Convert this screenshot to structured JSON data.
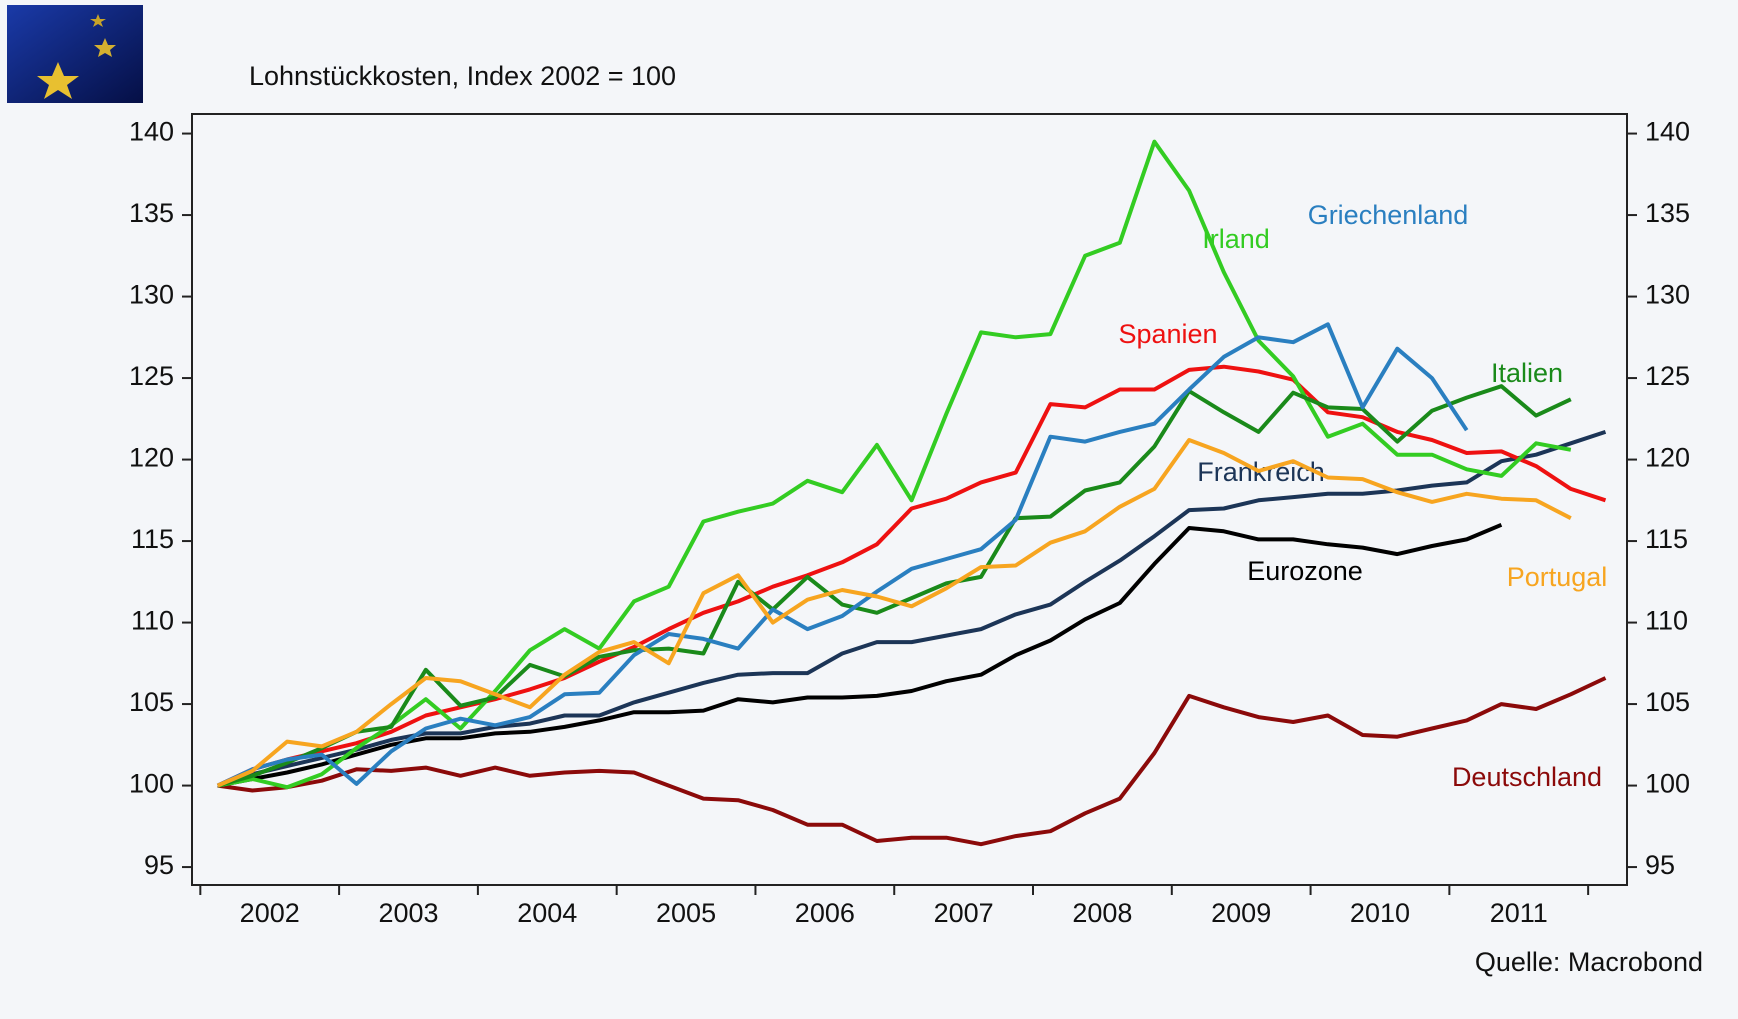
{
  "chart_data": {
    "type": "line",
    "title": "Lohnstückkosten, Index 2002 = 100",
    "source": "Quelle: Macrobond",
    "x": [
      2002.125,
      2002.375,
      2002.625,
      2002.875,
      2003.125,
      2003.375,
      2003.625,
      2003.875,
      2004.125,
      2004.375,
      2004.625,
      2004.875,
      2005.125,
      2005.375,
      2005.625,
      2005.875,
      2006.125,
      2006.375,
      2006.625,
      2006.875,
      2007.125,
      2007.375,
      2007.625,
      2007.875,
      2008.125,
      2008.375,
      2008.625,
      2008.875,
      2009.125,
      2009.375,
      2009.625,
      2009.875,
      2010.125,
      2010.375,
      2010.625,
      2010.875,
      2011.125,
      2011.375,
      2011.625,
      2011.875,
      2012.125
    ],
    "xlim": [
      2001.94,
      2012.28
    ],
    "xticks": [
      2002,
      2003,
      2004,
      2005,
      2006,
      2007,
      2008,
      2009,
      2010,
      2011,
      2012
    ],
    "xlabels": [
      {
        "value": 2002.5,
        "label": "2002"
      },
      {
        "value": 2003.5,
        "label": "2003"
      },
      {
        "value": 2004.5,
        "label": "2004"
      },
      {
        "value": 2005.5,
        "label": "2005"
      },
      {
        "value": 2006.5,
        "label": "2006"
      },
      {
        "value": 2007.5,
        "label": "2007"
      },
      {
        "value": 2008.5,
        "label": "2008"
      },
      {
        "value": 2009.5,
        "label": "2009"
      },
      {
        "value": 2010.5,
        "label": "2010"
      },
      {
        "value": 2011.5,
        "label": "2011"
      }
    ],
    "ylim": [
      93.9,
      141.2
    ],
    "yticks": [
      95,
      100,
      105,
      110,
      115,
      120,
      125,
      130,
      135,
      140
    ],
    "grid": false,
    "series": [
      {
        "name": "Deutschland",
        "color": "#8b0a0a",
        "values": [
          100,
          99.7,
          99.9,
          100.3,
          101.0,
          100.9,
          101.1,
          100.6,
          101.1,
          100.6,
          100.8,
          100.9,
          100.8,
          100.0,
          99.2,
          99.1,
          98.5,
          97.6,
          97.6,
          96.6,
          96.8,
          96.8,
          96.4,
          96.9,
          97.2,
          98.3,
          99.2,
          102.0,
          105.5,
          104.8,
          104.2,
          103.9,
          104.3,
          103.1,
          103.0,
          103.5,
          104.0,
          105.0,
          104.7,
          105.6,
          106.6
        ]
      },
      {
        "name": "Eurozone",
        "color": "#000000",
        "values": [
          100,
          100.4,
          100.8,
          101.3,
          101.9,
          102.5,
          102.9,
          102.9,
          103.2,
          103.3,
          103.6,
          104.0,
          104.5,
          104.5,
          104.6,
          105.3,
          105.1,
          105.4,
          105.4,
          105.5,
          105.8,
          106.4,
          106.8,
          108.0,
          108.9,
          110.2,
          111.2,
          113.6,
          115.8,
          115.6,
          115.1,
          115.1,
          114.8,
          114.6,
          114.2,
          114.7,
          115.1,
          116.0,
          null,
          null,
          null
        ]
      },
      {
        "name": "Frankreich",
        "color": "#1c3557",
        "values": [
          100,
          100.7,
          101.2,
          101.7,
          102.2,
          102.8,
          103.2,
          103.2,
          103.6,
          103.8,
          104.3,
          104.3,
          105.1,
          105.7,
          106.3,
          106.8,
          106.9,
          106.9,
          108.1,
          108.8,
          108.8,
          109.2,
          109.6,
          110.5,
          111.1,
          112.5,
          113.8,
          115.3,
          116.9,
          117.0,
          117.5,
          117.7,
          117.9,
          117.9,
          118.1,
          118.4,
          118.6,
          119.9,
          120.3,
          121.0,
          121.7
        ]
      },
      {
        "name": "Spanien",
        "color": "#ee1111",
        "values": [
          100,
          101.0,
          101.6,
          102.1,
          102.6,
          103.3,
          104.3,
          104.8,
          105.3,
          105.9,
          106.6,
          107.6,
          108.5,
          109.6,
          110.6,
          111.3,
          112.2,
          112.9,
          113.7,
          114.8,
          117.0,
          117.6,
          118.6,
          119.2,
          123.4,
          123.2,
          124.3,
          124.3,
          125.5,
          125.7,
          125.4,
          124.9,
          122.9,
          122.6,
          121.7,
          121.2,
          120.4,
          120.5,
          119.6,
          118.2,
          117.5
        ]
      },
      {
        "name": "Irland",
        "color": "#33cc22",
        "values": [
          100,
          100.4,
          99.9,
          100.7,
          102.3,
          103.7,
          105.3,
          103.5,
          105.8,
          108.3,
          109.6,
          108.4,
          111.3,
          112.2,
          116.2,
          116.8,
          117.3,
          118.7,
          118.0,
          120.9,
          117.5,
          122.8,
          127.8,
          127.5,
          127.7,
          132.5,
          133.3,
          139.5,
          136.5,
          131.5,
          127.3,
          125.1,
          121.4,
          122.2,
          120.3,
          120.3,
          119.4,
          119.0,
          121.0,
          120.6,
          null
        ]
      },
      {
        "name": "Italien",
        "color": "#1a8a1a",
        "values": [
          100,
          100.6,
          101.4,
          102.3,
          103.3,
          103.6,
          107.1,
          104.9,
          105.4,
          107.4,
          106.7,
          107.9,
          108.3,
          108.4,
          108.1,
          112.5,
          110.8,
          112.8,
          111.1,
          110.6,
          111.5,
          112.4,
          112.8,
          116.4,
          116.5,
          118.1,
          118.6,
          120.8,
          124.2,
          122.9,
          121.7,
          124.1,
          123.2,
          123.1,
          121.1,
          123.0,
          123.8,
          124.5,
          122.7,
          123.7,
          null
        ]
      },
      {
        "name": "Griechenland",
        "color": "#2a7fc0",
        "values": [
          100,
          101.0,
          101.6,
          101.9,
          100.1,
          102.1,
          103.5,
          104.1,
          103.7,
          104.2,
          105.6,
          105.7,
          108.0,
          109.3,
          109.0,
          108.4,
          110.8,
          109.6,
          110.4,
          111.9,
          113.3,
          113.9,
          114.5,
          116.3,
          121.4,
          121.1,
          121.7,
          122.2,
          124.3,
          126.3,
          127.5,
          127.2,
          128.3,
          123.2,
          126.8,
          125.0,
          121.8,
          null,
          null,
          null,
          null
        ]
      },
      {
        "name": "Portugal",
        "color": "#f7a520",
        "values": [
          100,
          100.9,
          102.7,
          102.4,
          103.3,
          105.0,
          106.6,
          106.4,
          105.6,
          104.8,
          106.8,
          108.2,
          108.8,
          107.5,
          111.8,
          112.9,
          110.0,
          111.4,
          112.0,
          111.6,
          111.0,
          112.1,
          113.4,
          113.5,
          114.9,
          115.6,
          117.1,
          118.2,
          121.2,
          120.4,
          119.3,
          119.9,
          118.9,
          118.8,
          118.0,
          117.4,
          117.9,
          117.6,
          117.5,
          116.4,
          null
        ]
      }
    ]
  }
}
